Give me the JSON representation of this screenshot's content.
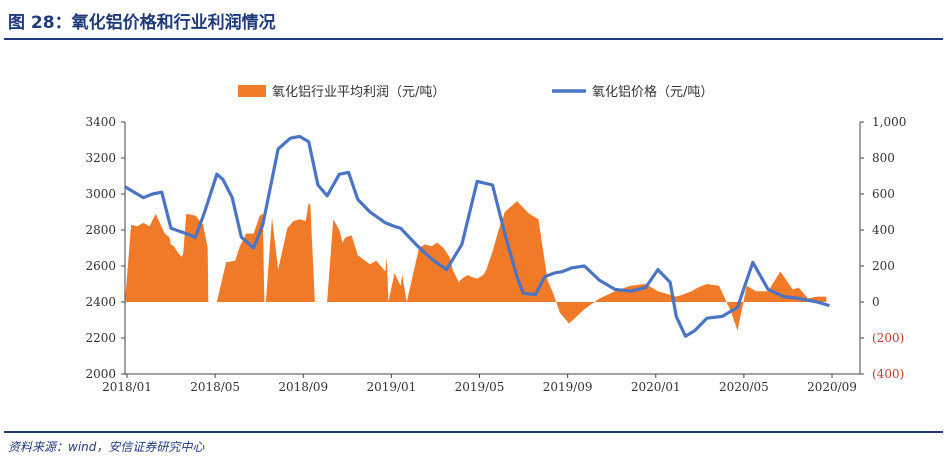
{
  "header": {
    "title": "图 28：氧化铝价格和行业利润情况"
  },
  "footer": {
    "source": "资料来源：wind，安信证券研究中心"
  },
  "chart_data": {
    "type": "bar+line",
    "title": "图 28：氧化铝价格和行业利润情况",
    "legend_position": "top",
    "colors": {
      "profit": "#f07a28",
      "price": "#4a74c4",
      "negative_tick": "#c0392b",
      "title": "#1f3a7a"
    },
    "left_axis": {
      "ylim": [
        2000,
        3400
      ],
      "ticks": [
        "2000",
        "2200",
        "2400",
        "2600",
        "2800",
        "3000",
        "3200",
        "3400"
      ]
    },
    "right_axis": {
      "ylim": [
        -400,
        1000
      ],
      "ticks": [
        "(400)",
        "(200)",
        "0",
        "200",
        "400",
        "600",
        "800",
        "1,000"
      ]
    },
    "x_ticks": [
      "2018/01",
      "2018/05",
      "2018/09",
      "2019/01",
      "2019/05",
      "2019/09",
      "2020/01",
      "2020/05",
      "2020/09"
    ],
    "series": [
      {
        "name": "氧化铝行业平均利润（元/吨）",
        "type": "area",
        "axis": "right",
        "x": [
          0,
          0.2,
          0.4,
          0.6,
          0.8,
          1.0,
          1.3,
          1.45,
          1.5,
          1.6,
          1.7,
          1.85,
          1.9,
          2.0,
          2.3,
          2.55,
          2.7,
          2.72,
          3.0,
          3.3,
          3.6,
          3.75,
          3.9,
          3.95,
          4.2,
          4.4,
          4.5,
          4.55,
          4.6,
          4.8,
          5.0,
          5.3,
          5.5,
          5.7,
          5.9,
          6.0,
          6.05,
          6.2,
          6.6,
          6.8,
          7.0,
          7.1,
          7.2,
          7.4,
          7.6,
          8.0,
          8.2,
          8.4,
          8.5,
          8.55,
          8.6,
          8.8,
          9.0,
          9.05,
          9.2,
          9.6,
          9.8,
          10.0,
          10.2,
          10.4,
          10.6,
          10.7,
          10.9,
          11.0,
          11.2,
          11.3,
          11.5,
          11.7,
          11.8,
          12.0,
          12.2,
          12.4,
          12.8,
          13.2,
          13.5,
          13.8,
          14.0,
          14.2,
          14.5,
          15.0,
          15.5,
          16.0,
          16.5,
          17.0,
          17.4,
          17.8,
          18.0,
          18.2,
          18.5,
          18.7,
          19.0,
          19.4,
          19.8,
          20.0,
          20.3,
          20.6,
          21.0,
          21.4,
          21.8,
          22.0,
          22.3,
          22.6,
          22.9
        ],
        "values": [
          0,
          430,
          420,
          440,
          420,
          490,
          380,
          360,
          320,
          310,
          280,
          250,
          270,
          490,
          480,
          430,
          300,
          0,
          0,
          220,
          230,
          310,
          360,
          380,
          380,
          480,
          490,
          0,
          0,
          470,
          180,
          410,
          450,
          460,
          450,
          550,
          540,
          0,
          0,
          460,
          400,
          330,
          360,
          370,
          260,
          210,
          230,
          190,
          170,
          250,
          0,
          160,
          90,
          150,
          0,
          300,
          320,
          310,
          330,
          300,
          250,
          180,
          110,
          130,
          150,
          140,
          130,
          150,
          180,
          280,
          400,
          500,
          560,
          490,
          460,
          120,
          40,
          -60,
          -120,
          -40,
          20,
          60,
          90,
          100,
          60,
          40,
          30,
          40,
          60,
          80,
          100,
          90,
          -60,
          -160,
          90,
          60,
          60,
          170,
          70,
          80,
          20,
          30,
          30
        ],
        "gaps": [
          "2018/09",
          "2019/01"
        ]
      },
      {
        "name": "氧化铝价格（元/吨）",
        "type": "line",
        "axis": "left",
        "x": [
          0,
          0.3,
          0.6,
          0.9,
          1.2,
          1.5,
          2.0,
          2.3,
          2.6,
          3.0,
          3.2,
          3.5,
          3.8,
          4.2,
          4.5,
          5.0,
          5.4,
          5.7,
          6.0,
          6.3,
          6.6,
          7.0,
          7.3,
          7.6,
          8.0,
          8.5,
          8.8,
          9.0,
          9.5,
          10.0,
          10.5,
          11.0,
          11.5,
          12.0,
          12.4,
          12.8,
          13.0,
          13.4,
          13.7,
          14.0,
          14.3,
          14.6,
          15.0,
          15.5,
          16.0,
          16.5,
          17.0,
          17.4,
          17.8,
          18.0,
          18.3,
          18.6,
          19.0,
          19.5,
          20.0,
          20.5,
          21.0,
          21.5,
          22.0,
          22.3,
          22.6,
          23.0
        ],
        "values": [
          3040,
          3010,
          2980,
          3000,
          3010,
          2810,
          2780,
          2760,
          2900,
          3110,
          3080,
          2980,
          2760,
          2700,
          2830,
          3250,
          3310,
          3320,
          3290,
          3050,
          2990,
          3110,
          3120,
          2970,
          2900,
          2840,
          2820,
          2810,
          2720,
          2640,
          2580,
          2720,
          3070,
          3050,
          2780,
          2540,
          2450,
          2440,
          2540,
          2560,
          2570,
          2590,
          2600,
          2520,
          2470,
          2460,
          2480,
          2580,
          2510,
          2320,
          2210,
          2240,
          2310,
          2320,
          2370,
          2620,
          2470,
          2430,
          2420,
          2410,
          2400,
          2380
        ]
      }
    ]
  },
  "legend": {
    "profit_label": "氧化铝行业平均利润（元/吨）",
    "price_label": "氧化铝价格（元/吨）"
  }
}
